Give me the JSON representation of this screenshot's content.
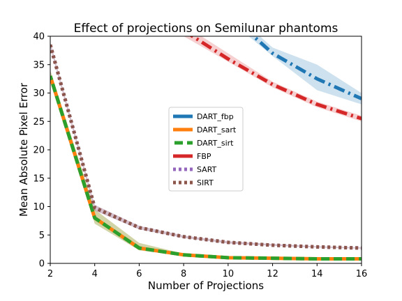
{
  "chart_data": {
    "type": "line",
    "title": "Effect of projections on Semilunar phantoms",
    "xlabel": "Number of Projections",
    "ylabel": "Mean Absolute Pixel Error",
    "xlim": [
      2,
      16
    ],
    "ylim": [
      0,
      40
    ],
    "xticks": [
      2,
      4,
      6,
      8,
      10,
      12,
      14,
      16
    ],
    "yticks": [
      0,
      5,
      10,
      15,
      20,
      25,
      30,
      35,
      40
    ],
    "x": [
      2,
      4,
      6,
      8,
      10,
      12,
      14,
      16
    ],
    "grid": false,
    "legend_position": "center",
    "series": [
      {
        "name": "DART_fbp",
        "color": "#1f77b4",
        "style": "dashdot",
        "values": [
          null,
          null,
          null,
          null,
          44,
          37,
          32.5,
          29
        ],
        "lower": [
          null,
          null,
          null,
          null,
          43,
          36.5,
          30.5,
          28
        ],
        "upper": [
          null,
          null,
          null,
          null,
          45,
          38,
          35,
          30
        ]
      },
      {
        "name": "DART_sart",
        "color": "#ff7f0e",
        "style": "solid",
        "values": [
          33,
          8,
          2.7,
          1.5,
          1.0,
          0.9,
          0.8,
          0.8
        ],
        "lower": [
          32,
          7,
          2.3,
          1.3,
          0.9,
          0.8,
          0.75,
          0.7
        ],
        "upper": [
          34,
          9.5,
          3.6,
          1.7,
          1.1,
          1.0,
          0.9,
          0.85
        ]
      },
      {
        "name": "DART_sirt",
        "color": "#2ca02c",
        "style": "dashed",
        "values": [
          33,
          8,
          2.7,
          1.5,
          1.0,
          0.9,
          0.8,
          0.8
        ],
        "lower": [
          32,
          7,
          2.3,
          1.3,
          0.9,
          0.8,
          0.75,
          0.7
        ],
        "upper": [
          34,
          9.5,
          3.6,
          1.7,
          1.1,
          1.0,
          0.9,
          0.85
        ]
      },
      {
        "name": "FBP",
        "color": "#d62728",
        "style": "dashdot",
        "values": [
          null,
          null,
          null,
          41,
          36,
          31.5,
          28,
          25.5
        ],
        "lower": [
          null,
          null,
          null,
          40,
          35.5,
          31,
          27.5,
          25
        ],
        "upper": [
          null,
          null,
          null,
          42,
          37,
          32,
          28.5,
          26
        ]
      },
      {
        "name": "SART",
        "color": "#9467bd",
        "style": "dotted",
        "values": [
          38.5,
          9.8,
          6.3,
          4.7,
          3.7,
          3.2,
          2.9,
          2.7
        ],
        "lower": [
          38,
          9.3,
          6.0,
          4.5,
          3.5,
          3.1,
          2.8,
          2.6
        ],
        "upper": [
          39,
          10.3,
          6.6,
          4.9,
          3.9,
          3.4,
          3.0,
          2.8
        ]
      },
      {
        "name": "SIRT",
        "color": "#8c564b",
        "style": "dotted",
        "values": [
          38.5,
          9.8,
          6.3,
          4.7,
          3.7,
          3.2,
          2.9,
          2.7
        ],
        "lower": [
          38,
          9.3,
          6.0,
          4.5,
          3.5,
          3.1,
          2.8,
          2.6
        ],
        "upper": [
          39,
          10.3,
          6.6,
          4.9,
          3.9,
          3.4,
          3.0,
          2.8
        ]
      }
    ]
  }
}
